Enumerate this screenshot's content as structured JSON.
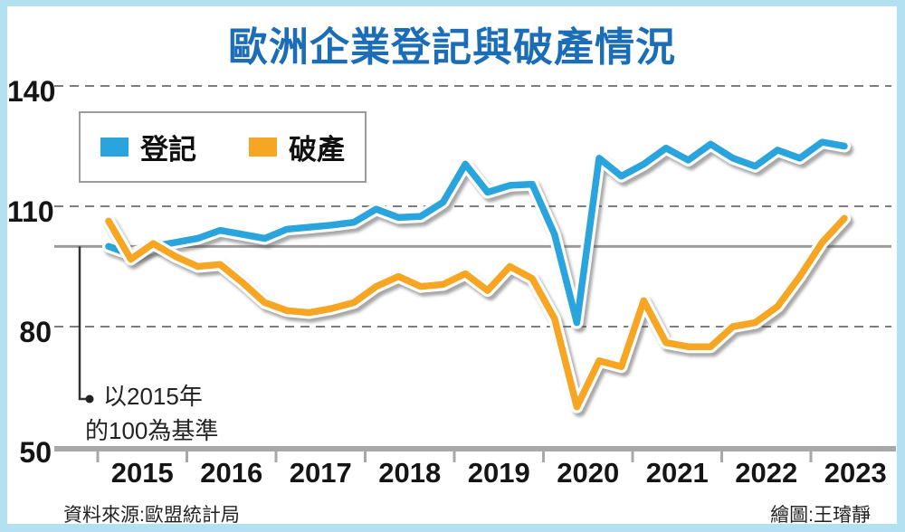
{
  "title": "歐洲企業登記與破產情況",
  "legend": {
    "items": [
      {
        "label": "登記",
        "color": "#2aa4dc"
      },
      {
        "label": "破產",
        "color": "#f6a623"
      }
    ]
  },
  "annotation": {
    "line1": "以2015年",
    "line2": "的100為基準"
  },
  "footer": {
    "source": "資料來源:歐盟統計局",
    "credit": "繪圖:王璿靜"
  },
  "y_axis": {
    "tick_labels": [
      "140",
      "110",
      "80",
      "50"
    ],
    "tick_values": [
      140,
      110,
      80,
      50
    ]
  },
  "x_axis": {
    "year_labels": [
      "2015",
      "2016",
      "2017",
      "2018",
      "2019",
      "2020",
      "2021",
      "2022",
      "2023"
    ]
  },
  "chart_data": {
    "type": "line",
    "title": "歐洲企業登記與破產情況",
    "x_unit": "quarter",
    "x_start": "2015Q1",
    "x_end": "2023Q2",
    "ylim": [
      50,
      140
    ],
    "baseline_value": 100,
    "gridline_values": [
      140,
      110,
      80
    ],
    "grid": "dashed horizontal",
    "legend_position": "top-left",
    "note": "以2015年的100為基準",
    "series": [
      {
        "name": "登記",
        "color": "#2aa4dc",
        "values": [
          100,
          98,
          100,
          101,
          102,
          104,
          103,
          102,
          104.3,
          104.8,
          105.3,
          106,
          109.3,
          107.2,
          107.5,
          111,
          120.5,
          113.5,
          115.2,
          115.5,
          103,
          81,
          122,
          117.5,
          120.5,
          124.5,
          121.5,
          125.5,
          122,
          120,
          124,
          122,
          126,
          125
        ]
      },
      {
        "name": "破產",
        "color": "#f6a623",
        "values": [
          106.3,
          96.8,
          100.7,
          97.5,
          95,
          95.5,
          91,
          86,
          84,
          83.5,
          84.5,
          86,
          90,
          92.5,
          90,
          90.5,
          93.2,
          89,
          95,
          92,
          82,
          60,
          71.5,
          70,
          86.5,
          76,
          75,
          75,
          80,
          81,
          85,
          92.5,
          101,
          107
        ]
      }
    ],
    "style": {
      "grid_color": "#7d7d7d",
      "baseline_color": "#9b9b9b",
      "axis_color": "#a8a8a8",
      "annotation_color": "#333333"
    }
  }
}
